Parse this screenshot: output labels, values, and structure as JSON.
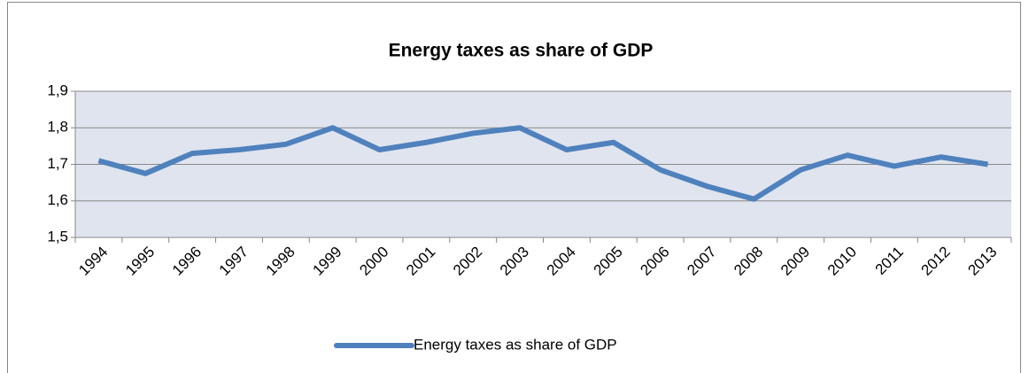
{
  "chart_data": {
    "type": "line",
    "title": "Energy taxes as share of GDP",
    "categories": [
      "1994",
      "1995",
      "1996",
      "1997",
      "1998",
      "1999",
      "2000",
      "2001",
      "2002",
      "2003",
      "2004",
      "2005",
      "2006",
      "2007",
      "2008",
      "2009",
      "2010",
      "2011",
      "2012",
      "2013"
    ],
    "series": [
      {
        "name": "Energy taxes as share of GDP",
        "color": "#4f81bd",
        "values": [
          1.71,
          1.675,
          1.73,
          1.74,
          1.755,
          1.8,
          1.74,
          1.76,
          1.785,
          1.8,
          1.74,
          1.76,
          1.685,
          1.64,
          1.605,
          1.685,
          1.725,
          1.695,
          1.72,
          1.7
        ]
      }
    ],
    "ylim": [
      1.5,
      1.9
    ],
    "yticks": [
      {
        "value": 1.5,
        "label": "1,5"
      },
      {
        "value": 1.6,
        "label": "1,6"
      },
      {
        "value": 1.7,
        "label": "1,7"
      },
      {
        "value": 1.8,
        "label": "1,8"
      },
      {
        "value": 1.9,
        "label": "1,9"
      }
    ],
    "grid": true,
    "legend": "bottom"
  }
}
